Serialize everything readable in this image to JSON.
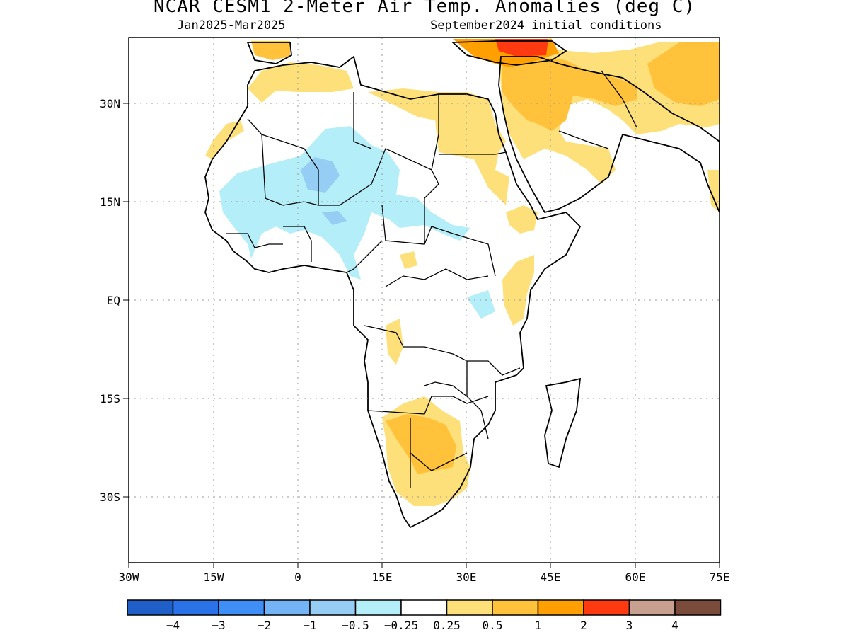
{
  "title": "NCAR_CESM1 2-Meter Air Temp. Anomalies (deg C)",
  "period": "Jan2025-Mar2025",
  "initial_conditions": "September2024 initial conditions",
  "lat_labels": [
    "30N",
    "15N",
    "EQ",
    "15S",
    "30S"
  ],
  "lon_labels": [
    "30W",
    "15W",
    "0",
    "15E",
    "30E",
    "45E",
    "60E",
    "75E"
  ],
  "colorbar": {
    "colors": [
      "#1f5fc7",
      "#2a72e8",
      "#3e8ef5",
      "#74b3f5",
      "#96cdf5",
      "#b4eef8",
      "#ffffff",
      "#fde07a",
      "#ffc23a",
      "#ffa000",
      "#ff3a10",
      "#c8a090",
      "#7a4a3a"
    ],
    "labels": [
      "-4",
      "-3",
      "-2",
      "-1",
      "-0.5",
      "-0.25",
      "0.25",
      "0.5",
      "1",
      "2",
      "3",
      "4"
    ]
  },
  "legend": {
    "levels": [
      "< -4",
      "-4 to -3",
      "-3 to -2",
      "-2 to -1",
      "-1 to -0.5",
      "-0.5 to -0.25",
      "-0.25 to 0.25",
      "0.25 to 0.5",
      "0.5 to 1",
      "1 to 2",
      "2 to 3",
      "3 to 4",
      "> 4"
    ]
  }
}
